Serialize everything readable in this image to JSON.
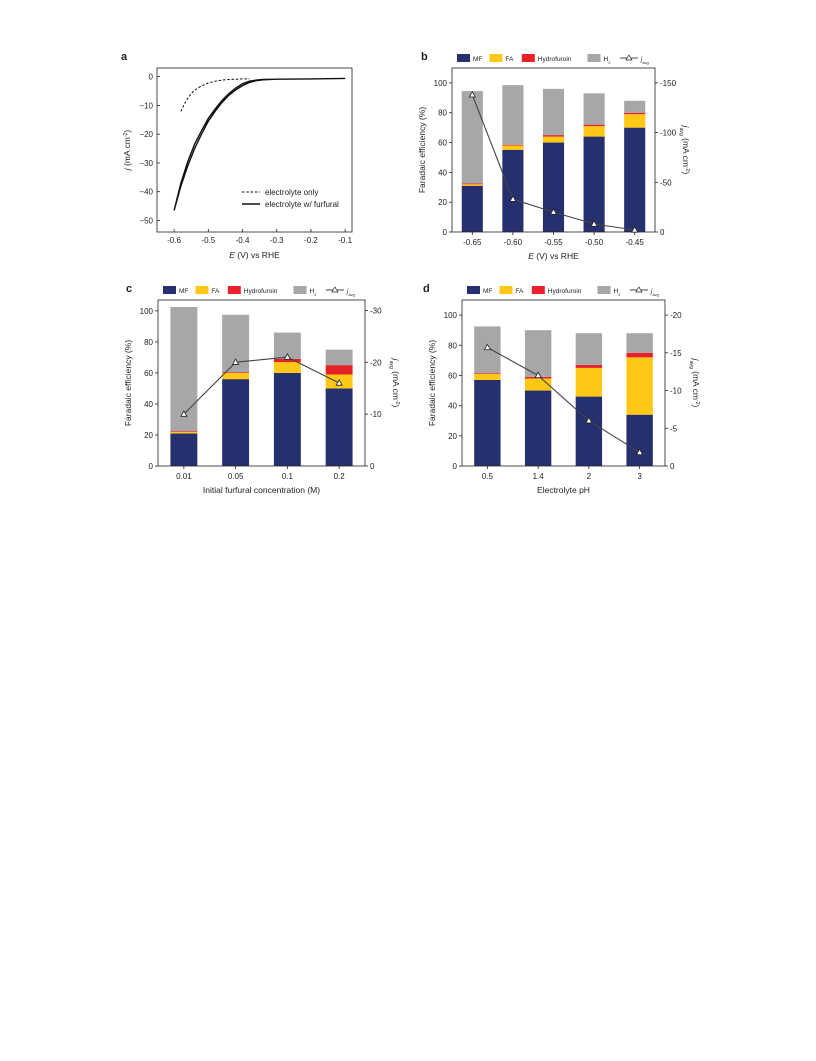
{
  "colors": {
    "MF": "#27306f",
    "FA": "#ffc817",
    "Hydrofuroin": "#e8202a",
    "H2": "#a7a7a7",
    "javg": "#444444",
    "axis": "#222222"
  },
  "chart_data": [
    {
      "panel": "a",
      "type": "line",
      "xlabel_italic": "E",
      "xlabel_rest": " (V) vs RHE",
      "ylabel_italic": "j",
      "ylabel_rest": " (mA cm",
      "ylabel_sup": "-2",
      "ylabel_end": ")",
      "xlim": [
        -0.65,
        -0.08
      ],
      "ylim": [
        -54,
        3
      ],
      "xticks": [
        -0.6,
        -0.5,
        -0.4,
        -0.3,
        -0.2,
        -0.1
      ],
      "xtick_labels": [
        "-0.6",
        "-0.5",
        "-0.4",
        "-0.3",
        "-0.2",
        "-0.1"
      ],
      "yticks": [
        0,
        -10,
        -20,
        -30,
        -40,
        -50
      ],
      "ytick_labels": [
        "0",
        "−10",
        "−20",
        "−30",
        "−40",
        "−50"
      ],
      "legend": "bottom-right",
      "series": [
        {
          "name": "electrolyte only",
          "style": "dashed",
          "x": [
            -0.58,
            -0.57,
            -0.56,
            -0.55,
            -0.54,
            -0.52,
            -0.5,
            -0.48,
            -0.46,
            -0.44,
            -0.42,
            -0.4,
            -0.38
          ],
          "y": [
            -12.1,
            -9.5,
            -7.5,
            -5.9,
            -4.7,
            -3.2,
            -2.2,
            -1.6,
            -1.2,
            -1.0,
            -0.9,
            -0.8,
            -0.8
          ]
        },
        {
          "name": "electrolyte w/ furfural",
          "style": "solid",
          "x": [
            -0.6,
            -0.58,
            -0.56,
            -0.54,
            -0.52,
            -0.5,
            -0.48,
            -0.46,
            -0.44,
            -0.42,
            -0.4,
            -0.38,
            -0.36,
            -0.34,
            -0.3,
            -0.2,
            -0.1,
            -0.2,
            -0.3,
            -0.34,
            -0.36,
            -0.38,
            -0.4,
            -0.42,
            -0.44,
            -0.46,
            -0.48,
            -0.5,
            -0.52,
            -0.54,
            -0.56,
            -0.58,
            -0.6
          ],
          "y": [
            -46.5,
            -38,
            -31,
            -25,
            -20,
            -15.5,
            -12,
            -9,
            -6.5,
            -4.6,
            -3.1,
            -2.0,
            -1.4,
            -1.1,
            -0.9,
            -0.8,
            -0.6,
            -0.8,
            -0.9,
            -1.0,
            -1.2,
            -1.6,
            -2.5,
            -4.0,
            -5.9,
            -8.3,
            -11.2,
            -14.5,
            -18.8,
            -23.5,
            -29.5,
            -37,
            -46.5
          ]
        }
      ]
    },
    {
      "panel": "b",
      "type": "bar",
      "stacked": true,
      "categories": [
        "-0.65",
        "-0.60",
        "-0.55",
        "-0.50",
        "-0.45"
      ],
      "xlabel_italic": "E",
      "xlabel_rest": " (V) vs RHE",
      "ylabel": "Faradaic efficiency (%)",
      "ylim": [
        0,
        110
      ],
      "yticks": [
        0,
        20,
        40,
        60,
        80,
        100
      ],
      "ytick_labels": [
        "0",
        "20",
        "40",
        "60",
        "80",
        "100"
      ],
      "y2label_italic": "j",
      "y2label_sub": "avg",
      "y2label_rest": " (mA cm",
      "y2label_sup": "-2",
      "y2label_end": ")",
      "y2lim": [
        0,
        -165
      ],
      "y2ticks": [
        0,
        -50,
        -100,
        -150
      ],
      "y2tick_labels": [
        "0",
        "-50",
        "-100",
        "-150"
      ],
      "legend": "top",
      "series": [
        {
          "name": "MF",
          "values": [
            31,
            55,
            60,
            64,
            70
          ]
        },
        {
          "name": "FA",
          "values": [
            1,
            3,
            4,
            7,
            9
          ]
        },
        {
          "name": "Hydrofuroin",
          "values": [
            0.5,
            0.5,
            1,
            1,
            1
          ]
        },
        {
          "name": "H",
          "name_sub": "2",
          "values": [
            62,
            40,
            31,
            21,
            8
          ]
        }
      ],
      "line": {
        "name": "j",
        "name_sub": "avg",
        "values": [
          -138,
          -33,
          -20,
          -8,
          -2
        ]
      }
    },
    {
      "panel": "c",
      "type": "bar",
      "stacked": true,
      "categories": [
        "0.01",
        "0.05",
        "0.1",
        "0.2"
      ],
      "xlabel": "Initial furfural concentration (M)",
      "ylabel": "Faradaic efficiency (%)",
      "ylim": [
        0,
        107
      ],
      "yticks": [
        0,
        20,
        40,
        60,
        80,
        100
      ],
      "ytick_labels": [
        "0",
        "20",
        "40",
        "60",
        "80",
        "100"
      ],
      "y2label_italic": "j",
      "y2label_sub": "avg",
      "y2label_rest": " (mA cm",
      "y2label_sup": "-2",
      "y2label_end": ")",
      "y2lim": [
        0,
        -32
      ],
      "y2ticks": [
        0,
        -10,
        -20,
        -30
      ],
      "y2tick_labels": [
        "0",
        "-10",
        "-20",
        "-30"
      ],
      "legend": "top",
      "series": [
        {
          "name": "MF",
          "values": [
            21,
            56,
            60,
            50
          ]
        },
        {
          "name": "FA",
          "values": [
            1,
            4,
            7,
            9
          ]
        },
        {
          "name": "Hydrofuroin",
          "values": [
            0.5,
            0.5,
            2,
            6
          ]
        },
        {
          "name": "H",
          "name_sub": "2",
          "values": [
            80,
            37,
            17,
            10
          ]
        }
      ],
      "line": {
        "name": "j",
        "name_sub": "avg",
        "values": [
          -10,
          -20,
          -21,
          -16
        ]
      }
    },
    {
      "panel": "d",
      "type": "bar",
      "stacked": true,
      "categories": [
        "0.5",
        "1.4",
        "2",
        "3"
      ],
      "xlabel": "Electrolyte pH",
      "ylabel": "Faradaic efficiency (%)",
      "ylim": [
        0,
        110
      ],
      "yticks": [
        0,
        20,
        40,
        60,
        80,
        100
      ],
      "ytick_labels": [
        "0",
        "20",
        "40",
        "60",
        "80",
        "100"
      ],
      "y2label_italic": "j",
      "y2label_sub": "avg",
      "y2label_rest": " (mA cm",
      "y2label_sup": "-2",
      "y2label_end": ")",
      "y2lim": [
        0,
        -22
      ],
      "y2ticks": [
        0,
        -5,
        -10,
        -15,
        -20
      ],
      "y2tick_labels": [
        "0",
        "-5",
        "-10",
        "-15",
        "-20"
      ],
      "legend": "top",
      "series": [
        {
          "name": "MF",
          "values": [
            57,
            50,
            46,
            34
          ]
        },
        {
          "name": "FA",
          "values": [
            4,
            8,
            19,
            38
          ]
        },
        {
          "name": "Hydrofuroin",
          "values": [
            0.5,
            1,
            2,
            3
          ]
        },
        {
          "name": "H",
          "name_sub": "2",
          "values": [
            31,
            31,
            21,
            13
          ]
        }
      ],
      "line": {
        "name": "j",
        "name_sub": "avg",
        "values": [
          -15.7,
          -12,
          -6,
          -1.8
        ]
      }
    }
  ]
}
